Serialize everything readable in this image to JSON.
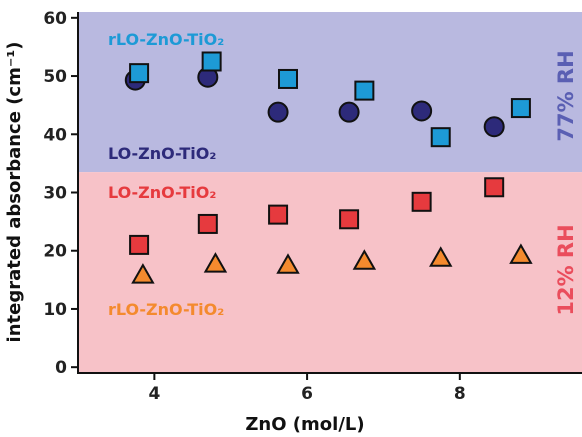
{
  "chart_data": {
    "type": "scatter",
    "xlabel": "ZnO (mol/L)",
    "ylabel": "integrated absorbance (cm⁻¹)",
    "xlim": [
      3.0,
      9.6
    ],
    "ylim": [
      -1,
      61
    ],
    "xticks": [
      4,
      6,
      8
    ],
    "yticks": [
      0,
      10,
      20,
      30,
      40,
      50,
      60
    ],
    "grid": false,
    "bands": [
      {
        "label": "77% RH",
        "y_from": 33.5,
        "y_to": 61,
        "color": "#b9b9e0"
      },
      {
        "label": "12% RH",
        "y_from": -1,
        "y_to": 33.5,
        "color": "#f7c2c8"
      }
    ],
    "series": [
      {
        "name": "rLO-ZnO-TiO₂",
        "band": "77% RH",
        "marker": "square",
        "color": "#1d9ad6",
        "x": [
          3.8,
          4.75,
          5.75,
          6.75,
          7.75,
          8.8
        ],
        "y": [
          50.5,
          52.5,
          49.5,
          47.5,
          39.5,
          44.5
        ]
      },
      {
        "name": "LO-ZnO-TiO₂",
        "band": "77% RH",
        "marker": "circle",
        "color": "#2d2a7a",
        "x": [
          3.75,
          4.7,
          5.62,
          6.55,
          7.5,
          8.45
        ],
        "y": [
          49.3,
          49.8,
          43.8,
          43.8,
          44.0,
          41.3
        ]
      },
      {
        "name": "LO-ZnO-TiO₂",
        "band": "12% RH",
        "marker": "square",
        "color": "#e63a3e",
        "x": [
          3.8,
          4.7,
          5.62,
          6.55,
          7.5,
          8.45
        ],
        "y": [
          21.0,
          24.6,
          26.2,
          25.4,
          28.4,
          30.9
        ]
      },
      {
        "name": "rLO-ZnO-TiO₂",
        "band": "12% RH",
        "marker": "triangle",
        "color": "#f48a2e",
        "x": [
          3.85,
          4.8,
          5.75,
          6.75,
          7.75,
          8.8
        ],
        "y": [
          15.8,
          17.7,
          17.5,
          18.2,
          18.7,
          19.2
        ]
      }
    ],
    "annotations": [
      {
        "text": "rLO-ZnO-TiO₂",
        "color": "#1d9ad6"
      },
      {
        "text": "LO-ZnO-TiO₂",
        "color": "#2d2a7a"
      },
      {
        "text": "LO-ZnO-TiO₂",
        "color": "#e63a3e"
      },
      {
        "text": "rLO-ZnO-TiO₂",
        "color": "#f48a2e"
      }
    ],
    "band_labels": [
      {
        "text": "77% RH",
        "color": "#5a5fb3"
      },
      {
        "text": "12% RH",
        "color": "#ea4d5c"
      }
    ]
  }
}
